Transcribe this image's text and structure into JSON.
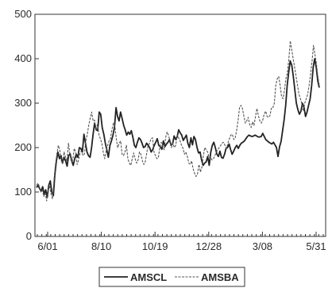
{
  "chart_data": {
    "type": "line",
    "x_ticks": [
      "6/01",
      "8/10",
      "10/19",
      "12/28",
      "3/08",
      "5/31"
    ],
    "ylim": [
      0,
      500
    ],
    "y_ticks": [
      0,
      100,
      200,
      300,
      400,
      500
    ],
    "grid": false,
    "legend": "bottom",
    "series": [
      {
        "name": "AMSCL",
        "style": "solid",
        "color": "#222222",
        "values": [
          110,
          115,
          108,
          102,
          112,
          95,
          105,
          88,
          115,
          125,
          100,
          92,
          140,
          170,
          190,
          175,
          182,
          165,
          178,
          170,
          158,
          182,
          186,
          170,
          160,
          175,
          185,
          178,
          200,
          198,
          190,
          230,
          210,
          190,
          182,
          178,
          200,
          230,
          255,
          240,
          238,
          280,
          275,
          245,
          230,
          210,
          195,
          178,
          205,
          215,
          228,
          245,
          290,
          270,
          260,
          280,
          265,
          250,
          240,
          228,
          235,
          230,
          238,
          224,
          205,
          200,
          212,
          222,
          218,
          210,
          200,
          202,
          210,
          205,
          200,
          190,
          195,
          205,
          212,
          220,
          205,
          202,
          196,
          215,
          202,
          208,
          212,
          218,
          205,
          208,
          226,
          218,
          224,
          240,
          233,
          228,
          216,
          222,
          228,
          210,
          200,
          222,
          206,
          225,
          218,
          200,
          188,
          190,
          172,
          160,
          165,
          168,
          180,
          160,
          190,
          205,
          212,
          200,
          185,
          180,
          192,
          178,
          176,
          185,
          198,
          200,
          208,
          195,
          185,
          192,
          200,
          205,
          198,
          205,
          210,
          212,
          215,
          220,
          225,
          228,
          226,
          225,
          226,
          228,
          226,
          224,
          224,
          225,
          232,
          225,
          218,
          215,
          212,
          210,
          208,
          212,
          206,
          200,
          180,
          202,
          214,
          238,
          262,
          295,
          340,
          370,
          395,
          385,
          360,
          330,
          300,
          285,
          275,
          282,
          300,
          290,
          270,
          280,
          295,
          310,
          340,
          380,
          400,
          380,
          350,
          335
        ]
      },
      {
        "name": "AMSBA",
        "style": "dashed",
        "color": "#555555",
        "values": [
          115,
          120,
          112,
          100,
          105,
          90,
          98,
          80,
          102,
          115,
          95,
          85,
          125,
          160,
          185,
          205,
          195,
          170,
          165,
          190,
          178,
          170,
          210,
          185,
          168,
          172,
          198,
          190,
          162,
          172,
          188,
          192,
          182,
          185,
          215,
          230,
          250,
          265,
          280,
          260,
          262,
          240,
          252,
          230,
          220,
          210,
          190,
          175,
          192,
          205,
          215,
          220,
          240,
          255,
          248,
          220,
          200,
          210,
          215,
          185,
          182,
          190,
          205,
          175,
          165,
          160,
          175,
          188,
          175,
          165,
          172,
          190,
          185,
          170,
          162,
          168,
          188,
          205,
          210,
          220,
          222,
          190,
          182,
          175,
          178,
          200,
          212,
          205,
          195,
          222,
          235,
          228,
          215,
          200,
          210,
          200,
          205,
          228,
          222,
          215,
          205,
          198,
          185,
          190,
          180,
          165,
          162,
          170,
          152,
          142,
          135,
          140,
          162,
          145,
          155,
          180,
          200,
          195,
          190,
          178,
          180,
          172,
          175,
          182,
          190,
          195,
          200,
          205,
          210,
          212,
          205,
          198,
          210,
          220,
          228,
          230,
          218,
          222,
          238,
          262,
          290,
          295,
          288,
          270,
          255,
          260,
          268,
          252,
          245,
          258,
          250,
          270,
          288,
          272,
          260,
          255,
          262,
          275,
          282,
          270,
          268,
          272,
          290,
          290,
          300,
          340,
          355,
          360,
          340,
          315,
          310,
          330,
          355,
          368,
          400,
          440,
          420,
          400,
          380,
          360,
          340,
          320,
          310,
          298,
          282,
          300,
          310,
          320,
          340,
          365,
          395,
          430,
          410,
          390,
          360,
          340
        ]
      }
    ]
  }
}
